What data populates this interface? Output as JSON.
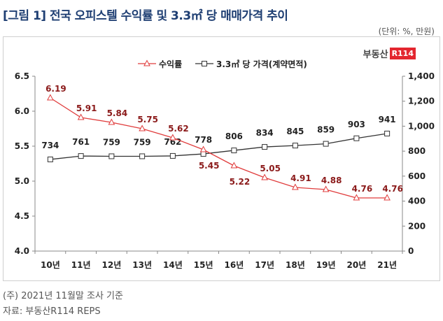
{
  "title": "[그림 1] 전국 오피스텔 수익률 및 3.3㎡ 당 매매가격 추이",
  "unit_note": "(단위: %, 만원)",
  "logo": {
    "text": "부동산",
    "badge": "R114"
  },
  "footnotes": [
    "(주) 2021년 11월말 조사 기준",
    "자료: 부동산R114 REPS"
  ],
  "colors": {
    "yield": "#e03c3c",
    "yield_label": "#8b1a1a",
    "price": "#333333",
    "title": "#1f3f73"
  },
  "chart_data": {
    "type": "line",
    "categories": [
      "10년",
      "11년",
      "12년",
      "13년",
      "14년",
      "15년",
      "16년",
      "17년",
      "18년",
      "19년",
      "20년",
      "21년"
    ],
    "series": [
      {
        "name": "수익률",
        "axis": "left",
        "marker": "triangle",
        "values": [
          6.19,
          5.91,
          5.84,
          5.75,
          5.62,
          5.45,
          5.22,
          5.05,
          4.91,
          4.88,
          4.76,
          4.76
        ],
        "labels": [
          "6.19",
          "5.91",
          "5.84",
          "5.75",
          "5.62",
          "5.45",
          "5.22",
          "5.05",
          "4.91",
          "4.88",
          "4.76",
          "4.76"
        ]
      },
      {
        "name": "3.3㎡ 당 가격(계약면적)",
        "axis": "right",
        "marker": "square",
        "values": [
          734,
          761,
          759,
          759,
          762,
          778,
          806,
          834,
          845,
          859,
          903,
          941
        ],
        "labels": [
          "734",
          "761",
          "759",
          "759",
          "762",
          "778",
          "806",
          "834",
          "845",
          "859",
          "903",
          "941"
        ]
      }
    ],
    "ylim_left": [
      4.0,
      6.5
    ],
    "yticks_left": [
      "4.0",
      "4.5",
      "5.0",
      "5.5",
      "6.0",
      "6.5"
    ],
    "ylim_right": [
      0,
      1400
    ],
    "yticks_right": [
      "0",
      "200",
      "400",
      "600",
      "800",
      "1,000",
      "1,200",
      "1,400"
    ],
    "legend_position": "top-center",
    "grid": false
  }
}
